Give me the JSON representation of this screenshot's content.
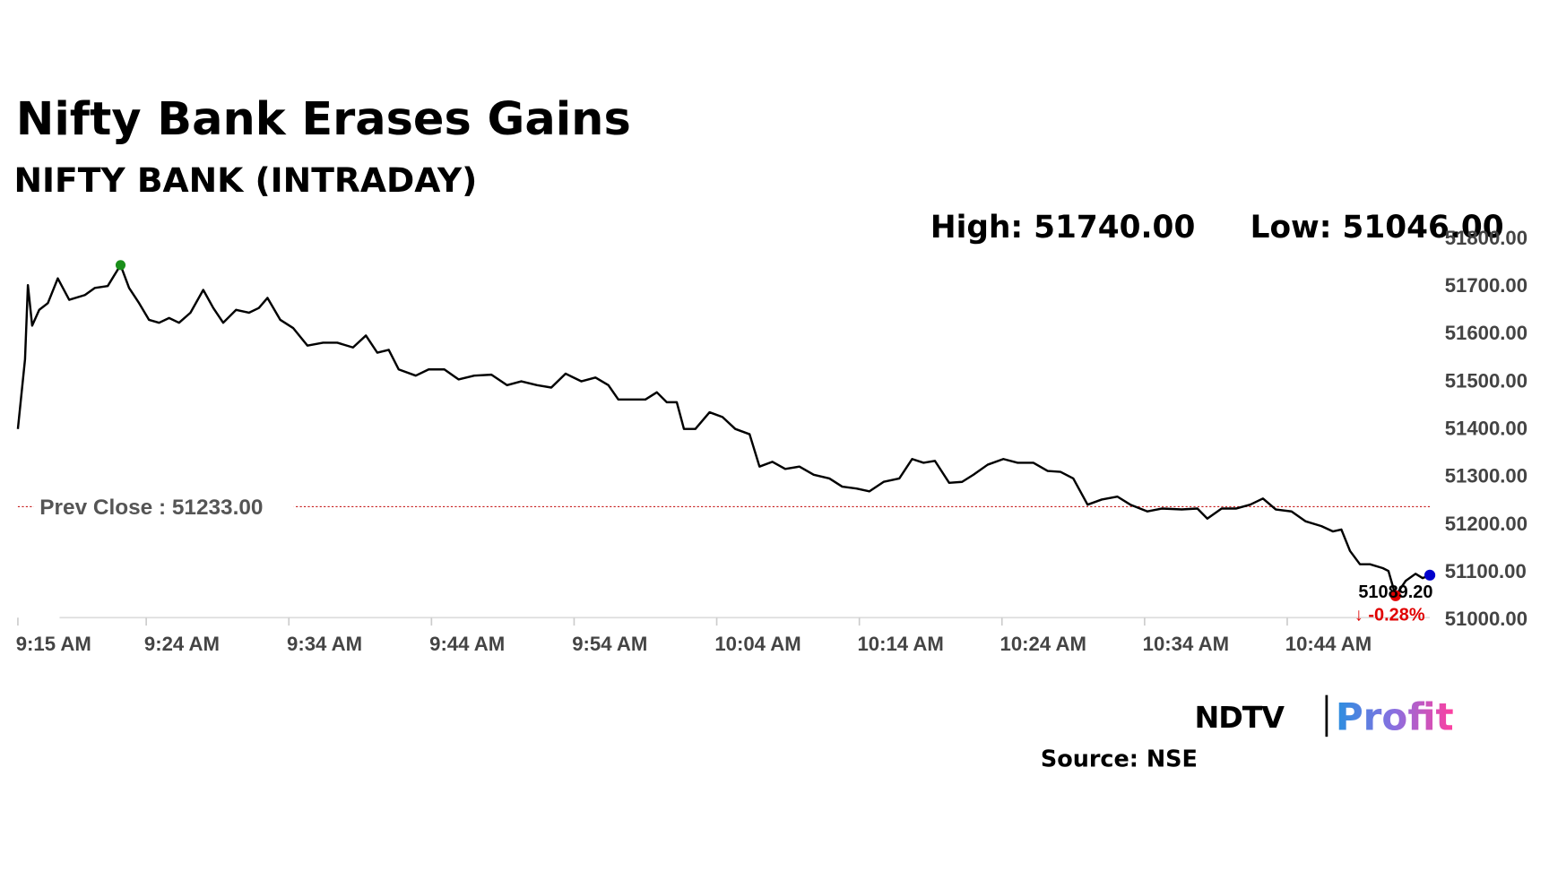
{
  "chart_data": {
    "type": "line",
    "title": "Nifty Bank Erases Gains",
    "subtitle": "NIFTY BANK (INTRADAY)",
    "high_label": "High: 51740.00",
    "low_label": "Low: 51046.00",
    "prev_close": 51233,
    "prev_close_label": "Prev Close : 51233.00",
    "last_label": "51089.20",
    "change_label": "↓ -0.28%",
    "source": "Source: NSE",
    "logo": [
      "NDTV",
      "Profit"
    ],
    "color": "#000000",
    "high_color": "#1a8f1a",
    "low_color": "#e00000",
    "last_color": "#0000cc",
    "prev_close_color": "#c00000",
    "x": [
      0,
      0.5,
      0.7,
      1.0,
      1.5,
      2.1,
      2.8,
      3.6,
      4.7,
      5.4,
      6.3,
      7.2,
      7.8,
      8.5,
      9.2,
      9.9,
      10.6,
      11.3,
      12.1,
      13.0,
      13.7,
      14.4,
      15.3,
      16.2,
      16.9,
      17.5,
      18.4,
      19.3,
      20.3,
      21.4,
      22.4,
      23.5,
      24.4,
      25.2,
      26.0,
      26.7,
      27.9,
      28.8,
      29.9,
      30.9,
      32.0,
      33.2,
      34.3,
      35.3,
      36.4,
      37.4,
      38.4,
      39.5,
      40.5,
      41.4,
      42.1,
      43.0,
      44.0,
      44.8,
      45.5,
      46.2,
      46.7,
      47.5,
      48.5,
      49.4,
      50.3,
      51.3,
      52.0,
      52.9,
      53.8,
      54.8,
      55.8,
      56.9,
      57.8,
      58.8,
      59.7,
      60.7,
      61.8,
      62.7,
      63.5,
      64.3,
      65.3,
      66.2,
      67.0,
      68.0,
      69.1,
      70.1,
      71.2,
      72.2,
      73.1,
      74.0,
      75.0,
      76.0,
      77.1,
      78.0,
      79.2,
      80.2,
      81.6,
      82.7,
      83.4,
      84.4,
      85.4,
      86.4,
      87.3,
      88.2,
      89.3,
      90.3,
      91.4,
      92.2,
      92.8,
      93.4,
      94.1,
      94.8,
      95.7,
      96.1,
      96.6,
      97.3,
      98.0,
      98.5,
      99.0
    ],
    "values": [
      51396,
      51542,
      51698,
      51613,
      51646,
      51660,
      51712,
      51667,
      51677,
      51692,
      51696,
      51740,
      51692,
      51660,
      51625,
      51619,
      51629,
      51619,
      51640,
      51688,
      51650,
      51619,
      51646,
      51640,
      51650,
      51671,
      51625,
      51608,
      51571,
      51577,
      51577,
      51567,
      51592,
      51556,
      51562,
      51521,
      51508,
      51521,
      51521,
      51500,
      51508,
      51510,
      51488,
      51496,
      51488,
      51483,
      51512,
      51496,
      51504,
      51488,
      51458,
      51458,
      51458,
      51473,
      51452,
      51452,
      51396,
      51396,
      51431,
      51421,
      51396,
      51385,
      51317,
      51327,
      51312,
      51317,
      51300,
      51292,
      51275,
      51271,
      51265,
      51285,
      51292,
      51333,
      51325,
      51329,
      51283,
      51285,
      51300,
      51321,
      51333,
      51325,
      51325,
      51308,
      51306,
      51292,
      51237,
      51248,
      51254,
      51237,
      51223,
      51229,
      51227,
      51229,
      51208,
      51229,
      51229,
      51237,
      51250,
      51227,
      51223,
      51202,
      51192,
      51181,
      51185,
      51140,
      51112,
      51112,
      51104,
      51098,
      51046,
      51077,
      51092,
      51083,
      51089.2
    ],
    "xlim": [
      0,
      99
    ],
    "xticks": [
      {
        "value": 0,
        "label": "9:15 AM"
      },
      {
        "value": 9,
        "label": "9:24 AM"
      },
      {
        "value": 19,
        "label": "9:34 AM"
      },
      {
        "value": 29,
        "label": "9:44 AM"
      },
      {
        "value": 39,
        "label": "9:54 AM"
      },
      {
        "value": 49,
        "label": "10:04 AM"
      },
      {
        "value": 59,
        "label": "10:14 AM"
      },
      {
        "value": 69,
        "label": "10:24 AM"
      },
      {
        "value": 79,
        "label": "10:34 AM"
      },
      {
        "value": 89,
        "label": "10:44 AM"
      }
    ],
    "ylim": [
      51000,
      51800
    ],
    "yticks": [
      {
        "value": 51000,
        "label": "51000.00"
      },
      {
        "value": 51100,
        "label": "51100.00"
      },
      {
        "value": 51200,
        "label": "51200.00"
      },
      {
        "value": 51300,
        "label": "51300.00"
      },
      {
        "value": 51400,
        "label": "51400.00"
      },
      {
        "value": 51500,
        "label": "51500.00"
      },
      {
        "value": 51600,
        "label": "51600.00"
      },
      {
        "value": 51700,
        "label": "51700.00"
      },
      {
        "value": 51800,
        "label": "51800.00"
      }
    ]
  }
}
